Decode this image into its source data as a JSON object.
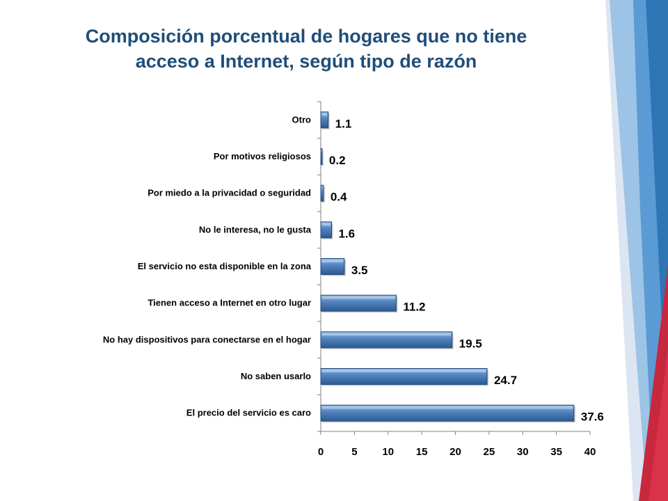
{
  "title_lines": [
    "Composición porcentual de hogares que no tiene",
    "acceso a Internet, según tipo de razón"
  ],
  "chart_data": {
    "type": "bar",
    "orientation": "horizontal",
    "title": "Composición porcentual de hogares que no tiene acceso a Internet, según tipo de razón",
    "categories": [
      "Otro",
      "Por motivos religiosos",
      "Por miedo a la privacidad o seguridad",
      "No le interesa, no le gusta",
      "El servicio no esta disponible en la zona",
      "Tienen acceso a Internet en otro lugar",
      "No hay dispositivos para conectarse en el hogar",
      "No saben usarlo",
      "El precio del servicio es caro"
    ],
    "values": [
      1.1,
      0.2,
      0.4,
      1.6,
      3.5,
      11.2,
      19.5,
      24.7,
      37.6
    ],
    "value_labels": [
      "1.1",
      "0.2",
      "0.4",
      "1.6",
      "3.5",
      "11.2",
      "19.5",
      "24.7",
      "37.6"
    ],
    "xlim": [
      0,
      40
    ],
    "xticks": [
      0,
      5,
      10,
      15,
      20,
      25,
      30,
      35,
      40
    ],
    "xlabel": "",
    "ylabel": "",
    "grid": false,
    "legend": "none",
    "colors": {
      "bar": "#4f81bd",
      "bar_light": "#8db3e2",
      "bar_dark": "#1f497d",
      "title": "#1f4e79"
    }
  },
  "decoration": {
    "colors": [
      "#dce6f2",
      "#9dc3e6",
      "#5b9bd5",
      "#2e75b6",
      "#c00000",
      "#d9334a"
    ]
  }
}
